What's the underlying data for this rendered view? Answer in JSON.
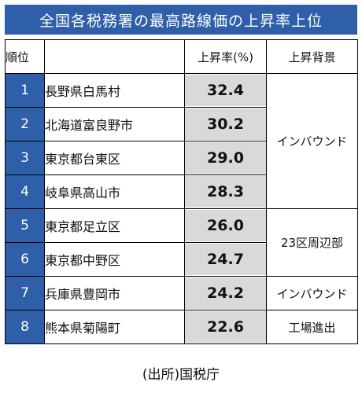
{
  "title": "全国各税務署の最高路線価の上昇率上位",
  "headers": {
    "rank": "順位",
    "city": "",
    "rate": "上昇率(%)",
    "background": "上昇背景"
  },
  "rows": [
    {
      "rank": "1",
      "city": "長野県白馬村",
      "rate": "32.4"
    },
    {
      "rank": "2",
      "city": "北海道富良野市",
      "rate": "30.2"
    },
    {
      "rank": "3",
      "city": "東京都台東区",
      "rate": "29.0"
    },
    {
      "rank": "4",
      "city": "岐阜県高山市",
      "rate": "28.3"
    },
    {
      "rank": "5",
      "city": "東京都足立区",
      "rate": "26.0"
    },
    {
      "rank": "6",
      "city": "東京都中野区",
      "rate": "24.7"
    },
    {
      "rank": "7",
      "city": "兵庫県豊岡市",
      "rate": "24.2"
    },
    {
      "rank": "8",
      "city": "熊本県菊陽町",
      "rate": "22.6"
    }
  ],
  "backgrounds": {
    "group1": "インバウンド",
    "group2": "23区周辺部",
    "group3": "インバウンド",
    "group4": "工場進出"
  },
  "source": "(出所)国税庁",
  "colors": {
    "header_blue": "#2e5fa8",
    "rate_gray": "#d9d9d9"
  }
}
